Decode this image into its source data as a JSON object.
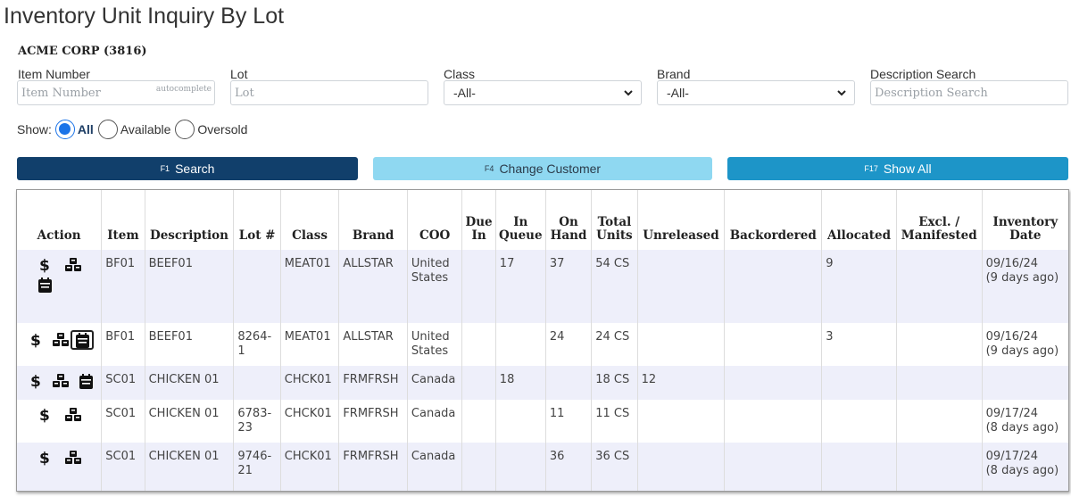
{
  "page": {
    "title": "Inventory Unit Inquiry By Lot",
    "customer": "ACME CORP (3816)"
  },
  "filters": {
    "item_number": {
      "label": "Item Number",
      "placeholder": "Item Number",
      "hint": "autocomplete"
    },
    "lot": {
      "label": "Lot",
      "placeholder": "Lot"
    },
    "class": {
      "label": "Class",
      "value": "-All-"
    },
    "brand": {
      "label": "Brand",
      "value": "-All-"
    },
    "description": {
      "label": "Description Search",
      "placeholder": "Description Search"
    }
  },
  "show": {
    "label": "Show:",
    "options": [
      "All",
      "Available",
      "Oversold"
    ],
    "selected": "All"
  },
  "buttons": {
    "search": {
      "fkey": "F1",
      "label": "Search"
    },
    "change_customer": {
      "fkey": "F4",
      "label": "Change Customer"
    },
    "show_all": {
      "fkey": "F17",
      "label": "Show All"
    }
  },
  "table": {
    "headers": {
      "action": "Action",
      "item": "Item",
      "description": "Description",
      "lot": "Lot #",
      "class": "Class",
      "brand": "Brand",
      "coo": "COO",
      "due_in_1": "Due",
      "due_in_2": "In",
      "in_queue_1": "In",
      "in_queue_2": "Queue",
      "on_hand_1": "On",
      "on_hand_2": "Hand",
      "total_units_1": "Total",
      "total_units_2": "Units",
      "unreleased": "Unreleased",
      "backordered": "Backordered",
      "allocated": "Allocated",
      "excl_1": "Excl. /",
      "excl_2": "Manifested",
      "inv_date_1": "Inventory",
      "inv_date_2": "Date"
    },
    "rows": [
      {
        "item": "BF01",
        "description": "BEEF01",
        "lot": "",
        "class": "MEAT01",
        "brand": "ALLSTAR",
        "coo": "United States",
        "due_in": "",
        "in_queue": "17",
        "on_hand": "37",
        "total_units": "54 CS",
        "unreleased": "",
        "backordered": "",
        "allocated": "9",
        "excl": "",
        "inv_date": "09/16/24",
        "inv_ago": "(9 days ago)"
      },
      {
        "item": "BF01",
        "description": "BEEF01",
        "lot": "8264-1",
        "class": "MEAT01",
        "brand": "ALLSTAR",
        "coo": "United States",
        "due_in": "",
        "in_queue": "",
        "on_hand": "24",
        "total_units": "24 CS",
        "unreleased": "",
        "backordered": "",
        "allocated": "3",
        "excl": "",
        "inv_date": "09/16/24",
        "inv_ago": "(9 days ago)"
      },
      {
        "item": "SC01",
        "description": "CHICKEN 01",
        "lot": "",
        "class": "CHCK01",
        "brand": "FRMFRSH",
        "coo": "Canada",
        "due_in": "",
        "in_queue": "18",
        "on_hand": "",
        "total_units": "18 CS",
        "unreleased": "12",
        "backordered": "",
        "allocated": "",
        "excl": "",
        "inv_date": "",
        "inv_ago": ""
      },
      {
        "item": "SC01",
        "description": "CHICKEN 01",
        "lot": "6783-23",
        "class": "CHCK01",
        "brand": "FRMFRSH",
        "coo": "Canada",
        "due_in": "",
        "in_queue": "",
        "on_hand": "11",
        "total_units": "11 CS",
        "unreleased": "",
        "backordered": "",
        "allocated": "",
        "excl": "",
        "inv_date": "09/17/24",
        "inv_ago": "(8 days ago)"
      },
      {
        "item": "SC01",
        "description": "CHICKEN 01",
        "lot": "9746-21",
        "class": "CHCK01",
        "brand": "FRMFRSH",
        "coo": "Canada",
        "due_in": "",
        "in_queue": "",
        "on_hand": "36",
        "total_units": "36 CS",
        "unreleased": "",
        "backordered": "",
        "allocated": "",
        "excl": "",
        "inv_date": "09/17/24",
        "inv_ago": "(8 days ago)"
      }
    ]
  },
  "icons": {
    "price": "dollar-icon",
    "components": "cubes-icon",
    "calendar": "calendar-icon"
  }
}
